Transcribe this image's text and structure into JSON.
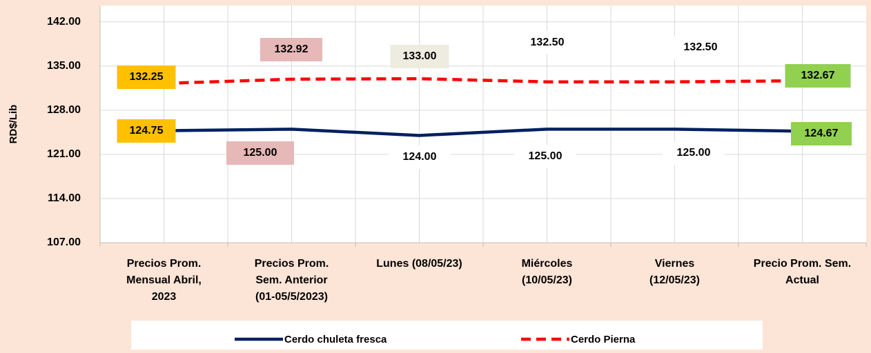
{
  "chart_data": {
    "type": "line",
    "y_label": "RD$/Lib",
    "categories": [
      [
        "Precios Prom.",
        "Mensual Abril,",
        "2023"
      ],
      [
        "Precios Prom.",
        "Sem. Anterior",
        "(01-05/5/2023)"
      ],
      [
        "Lunes  (08/05/23)"
      ],
      [
        "Miércoles",
        "(10/05/23)"
      ],
      [
        "Viernes",
        "(12/05/23)"
      ],
      [
        "Precio Prom. Sem.",
        "Actual"
      ]
    ],
    "series": [
      {
        "name": "Cerdo chuleta fresca",
        "color": "#002060",
        "dash": false,
        "values": [
          124.75,
          125.0,
          124.0,
          125.0,
          125.0,
          124.67
        ],
        "value_labels": [
          "124.75",
          "125.00",
          "124.00",
          "125.00",
          "125.00",
          "124.67"
        ],
        "label_colors": [
          "#ffc000",
          "#e6b8b7",
          "#ffffff",
          "#ffffff",
          "#ffffff",
          "#92d050"
        ]
      },
      {
        "name": "Cerdo Pierna",
        "color": "#ff0000",
        "dash": true,
        "values": [
          132.25,
          132.92,
          133.0,
          132.5,
          132.5,
          132.67
        ],
        "value_labels": [
          "132.25",
          "132.92",
          "133.00",
          "132.50",
          "132.50",
          "132.67"
        ],
        "label_colors": [
          "#ffc000",
          "#e6b8b7",
          "#eeece1",
          "#ffffff",
          "#ffffff",
          "#92d050"
        ]
      }
    ],
    "ylim": [
      107,
      144.6
    ],
    "yticks": [
      {
        "value": 107,
        "label": "107.00"
      },
      {
        "value": 114,
        "label": "114.00"
      },
      {
        "value": 121,
        "label": "121.00"
      },
      {
        "value": 128,
        "label": "128.00"
      },
      {
        "value": 135,
        "label": "135.00"
      },
      {
        "value": 142,
        "label": "142.00"
      }
    ],
    "grid": true
  }
}
